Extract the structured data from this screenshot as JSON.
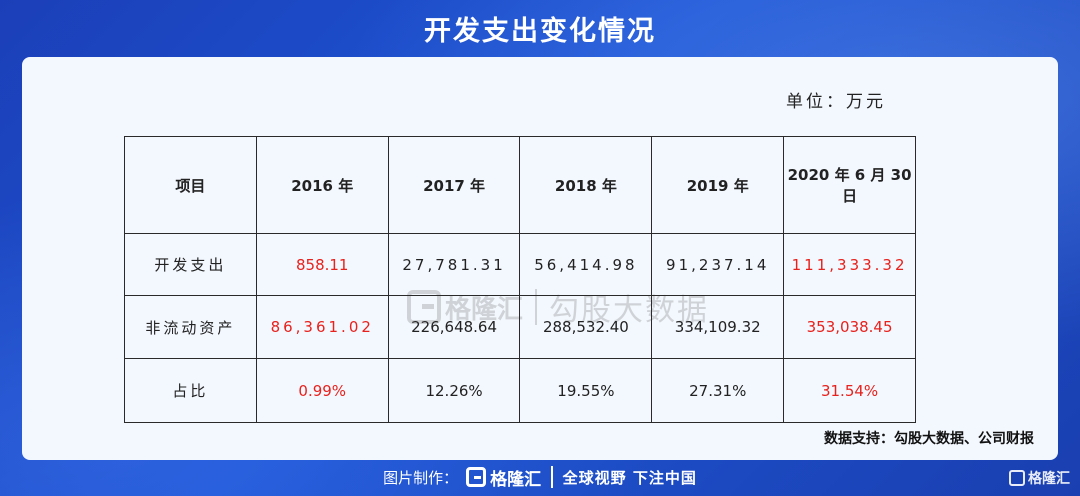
{
  "title": "开发支出变化情况",
  "unit": "单位：万元",
  "table": {
    "headers": [
      "项目",
      "2016 年",
      "2017 年",
      "2018 年",
      "2019 年",
      "2020 年 6 月 30 日"
    ],
    "rows": [
      {
        "label": "开发支出",
        "values": [
          "858.11",
          "27,781.31",
          "56,414.98",
          "91,237.14",
          "111,333.32"
        ]
      },
      {
        "label": "非流动资产",
        "values": [
          "86,361.02",
          "226,648.64",
          "288,532.40",
          "334,109.32",
          "353,038.45"
        ]
      },
      {
        "label": "占比",
        "values": [
          "0.99%",
          "12.26%",
          "19.55%",
          "27.31%",
          "31.54%"
        ]
      }
    ],
    "highlight_color": "#e8211c"
  },
  "watermark": {
    "brand": "格隆汇",
    "text": "勾股大数据"
  },
  "source": "数据支持：勾股大数据、公司财报",
  "footer": {
    "made_by": "图片制作：",
    "brand": "格隆汇",
    "slogan": "全球视野 下注中国"
  },
  "corner_brand": "格隆汇"
}
